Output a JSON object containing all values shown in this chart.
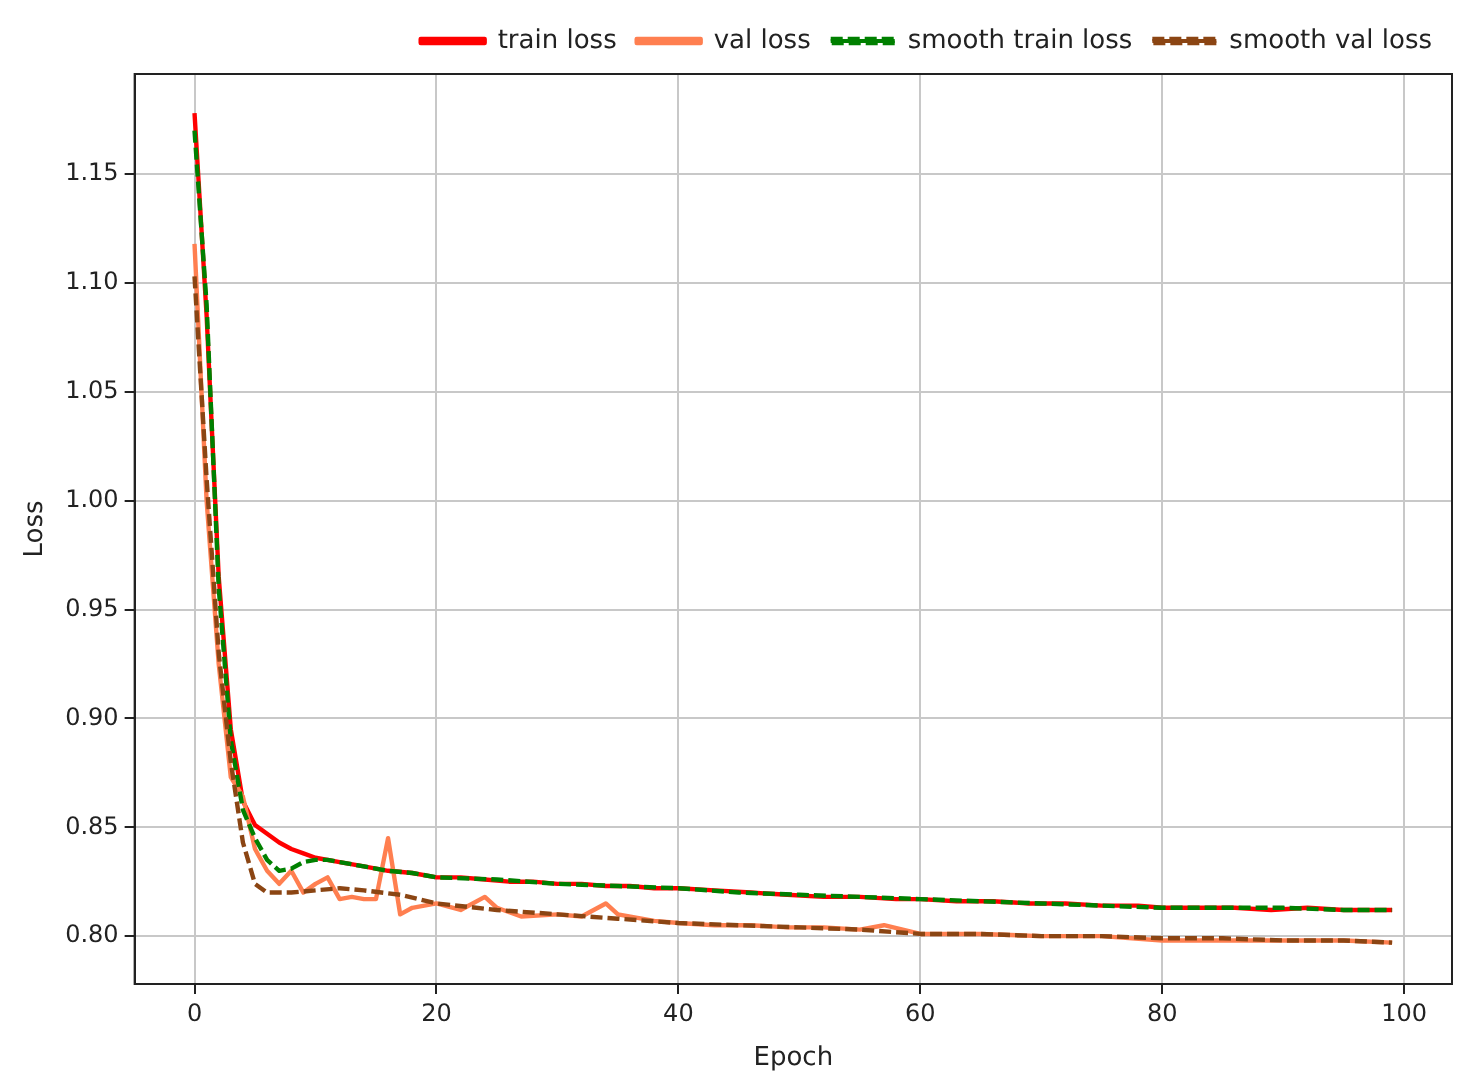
{
  "chart_data": {
    "type": "line",
    "xlabel": "Epoch",
    "ylabel": "Loss",
    "xlim": [
      -4.95,
      103.95
    ],
    "xticks": [
      0,
      20,
      40,
      60,
      80,
      100
    ],
    "ylim": [
      0.778,
      1.196
    ],
    "yticks": [
      {
        "value": 0.8,
        "label": "0.80"
      },
      {
        "value": 0.85,
        "label": "0.85"
      },
      {
        "value": 0.9,
        "label": "0.90"
      },
      {
        "value": 0.95,
        "label": "0.95"
      },
      {
        "value": 1.0,
        "label": "1.00"
      },
      {
        "value": 1.05,
        "label": "1.05"
      },
      {
        "value": 1.1,
        "label": "1.10"
      },
      {
        "value": 1.15,
        "label": "1.15"
      }
    ],
    "grid": true,
    "legend": "top right",
    "marker": "none",
    "series": [
      {
        "name": "train loss",
        "color": "#ff0000",
        "line_style": "solid",
        "x": [
          0,
          1,
          2,
          3,
          4,
          5,
          6,
          7,
          8,
          9,
          10,
          12,
          14,
          16,
          18,
          20,
          22,
          24,
          26,
          28,
          30,
          32,
          34,
          36,
          38,
          40,
          43,
          46,
          49,
          52,
          55,
          58,
          60,
          63,
          66,
          69,
          72,
          75,
          78,
          80,
          83,
          86,
          89,
          92,
          95,
          99
        ],
        "values": [
          1.178,
          1.085,
          0.965,
          0.895,
          0.862,
          0.851,
          0.847,
          0.843,
          0.84,
          0.838,
          0.836,
          0.834,
          0.832,
          0.83,
          0.829,
          0.827,
          0.827,
          0.826,
          0.825,
          0.825,
          0.824,
          0.824,
          0.823,
          0.823,
          0.822,
          0.822,
          0.821,
          0.82,
          0.819,
          0.818,
          0.818,
          0.817,
          0.817,
          0.816,
          0.816,
          0.815,
          0.815,
          0.814,
          0.814,
          0.813,
          0.813,
          0.813,
          0.812,
          0.813,
          0.812,
          0.812
        ]
      },
      {
        "name": "val loss",
        "color": "#ff7f50",
        "line_style": "solid",
        "x": [
          0,
          1,
          2,
          3,
          4,
          5,
          6,
          7,
          8,
          9,
          10,
          11,
          12,
          13,
          14,
          15,
          16,
          17,
          18,
          20,
          22,
          24,
          25,
          27,
          30,
          32,
          34,
          35,
          38,
          40,
          43,
          46,
          49,
          52,
          55,
          57,
          60,
          65,
          70,
          75,
          80,
          85,
          90,
          95,
          99
        ],
        "values": [
          1.118,
          1.0,
          0.925,
          0.873,
          0.864,
          0.84,
          0.83,
          0.824,
          0.83,
          0.82,
          0.824,
          0.827,
          0.817,
          0.818,
          0.817,
          0.817,
          0.845,
          0.81,
          0.813,
          0.815,
          0.812,
          0.818,
          0.813,
          0.809,
          0.81,
          0.809,
          0.815,
          0.81,
          0.807,
          0.806,
          0.805,
          0.805,
          0.804,
          0.804,
          0.803,
          0.805,
          0.801,
          0.801,
          0.8,
          0.8,
          0.798,
          0.798,
          0.798,
          0.798,
          0.797
        ]
      },
      {
        "name": "smooth train loss",
        "color": "#008000",
        "line_style": "dashed",
        "x": [
          0,
          1,
          2,
          3,
          4,
          5,
          6,
          7,
          8,
          9,
          10,
          11,
          12,
          14,
          16,
          18,
          20,
          25,
          30,
          35,
          40,
          45,
          50,
          55,
          60,
          65,
          70,
          75,
          80,
          85,
          90,
          95,
          99
        ],
        "values": [
          1.17,
          1.09,
          0.96,
          0.89,
          0.858,
          0.845,
          0.835,
          0.83,
          0.831,
          0.834,
          0.835,
          0.835,
          0.834,
          0.832,
          0.83,
          0.829,
          0.827,
          0.826,
          0.824,
          0.823,
          0.822,
          0.82,
          0.819,
          0.818,
          0.817,
          0.816,
          0.815,
          0.814,
          0.813,
          0.813,
          0.813,
          0.812,
          0.812
        ]
      },
      {
        "name": "smooth val loss",
        "color": "#8b4513",
        "line_style": "dashed",
        "x": [
          0,
          1,
          2,
          3,
          4,
          5,
          6,
          8,
          10,
          12,
          14,
          17,
          20,
          25,
          30,
          35,
          40,
          45,
          50,
          55,
          60,
          65,
          70,
          75,
          80,
          85,
          90,
          95,
          99
        ],
        "values": [
          1.103,
          1.01,
          0.93,
          0.88,
          0.843,
          0.824,
          0.82,
          0.82,
          0.821,
          0.822,
          0.821,
          0.819,
          0.815,
          0.812,
          0.81,
          0.808,
          0.806,
          0.805,
          0.804,
          0.803,
          0.801,
          0.801,
          0.8,
          0.8,
          0.799,
          0.799,
          0.798,
          0.798,
          0.797
        ]
      }
    ]
  }
}
